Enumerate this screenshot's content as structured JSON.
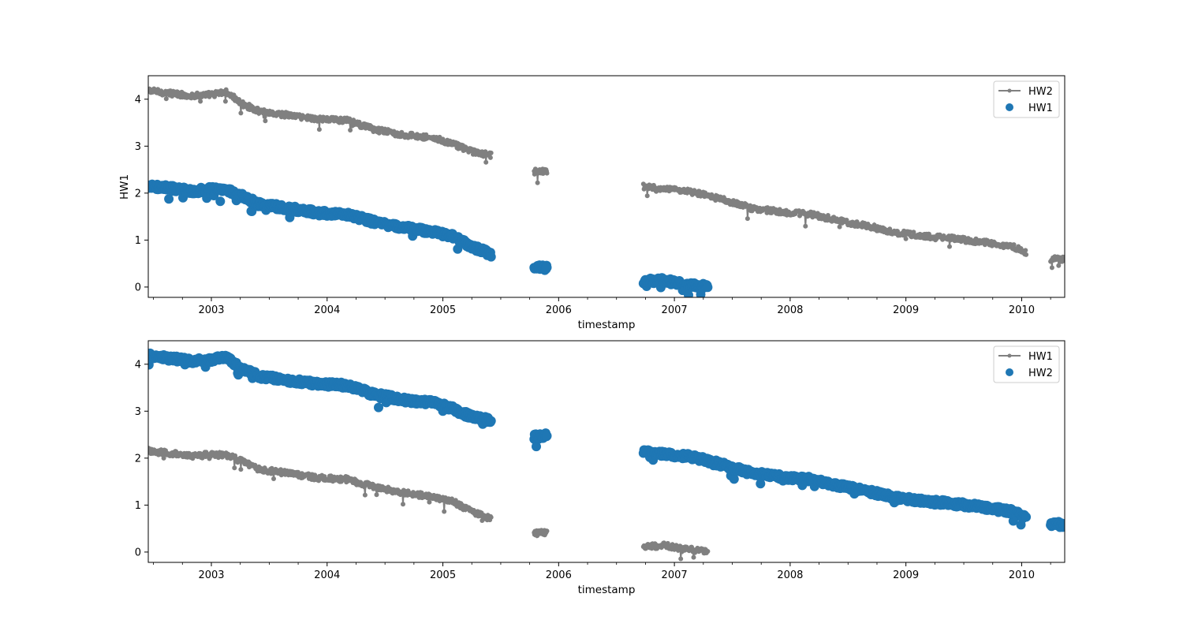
{
  "colors": {
    "line_series": "#808080",
    "scatter_series": "#1f77b4"
  },
  "chart_data": [
    {
      "type": "scatter",
      "xlabel": "timestamp",
      "ylabel": "HW1",
      "xlim": [
        "2002-06-15",
        "2010-05-15"
      ],
      "ylim": [
        -0.22,
        4.5
      ],
      "x_ticks": [
        "2003",
        "2004",
        "2005",
        "2006",
        "2007",
        "2008",
        "2009",
        "2010"
      ],
      "y_ticks": [
        "0",
        "1",
        "2",
        "3",
        "4"
      ],
      "grid": false,
      "legend_position": "top-right",
      "series": [
        {
          "name": "HW2",
          "style": "line-dot",
          "color": "#808080",
          "segments": [
            {
              "points": [
                [
                  "2002-06-15",
                  4.18
                ],
                [
                  "2002-09-01",
                  4.12
                ],
                [
                  "2002-11-01",
                  4.07
                ],
                [
                  "2003-01-01",
                  4.1
                ],
                [
                  "2003-02-20",
                  4.15
                ],
                [
                  "2003-04-01",
                  3.92
                ],
                [
                  "2003-06-01",
                  3.74
                ],
                [
                  "2003-09-01",
                  3.66
                ],
                [
                  "2003-12-01",
                  3.58
                ],
                [
                  "2004-03-01",
                  3.55
                ],
                [
                  "2004-06-01",
                  3.35
                ],
                [
                  "2004-09-01",
                  3.24
                ],
                [
                  "2004-12-01",
                  3.18
                ],
                [
                  "2005-02-01",
                  3.05
                ],
                [
                  "2005-04-01",
                  2.88
                ],
                [
                  "2005-06-01",
                  2.8
                ]
              ]
            },
            {
              "points": [
                [
                  "2005-10-15",
                  2.45
                ],
                [
                  "2005-11-25",
                  2.48
                ]
              ]
            },
            {
              "points": [
                [
                  "2006-09-25",
                  2.14
                ],
                [
                  "2006-12-01",
                  2.08
                ],
                [
                  "2007-03-01",
                  2.02
                ],
                [
                  "2007-06-01",
                  1.86
                ],
                [
                  "2007-09-01",
                  1.68
                ],
                [
                  "2007-12-01",
                  1.6
                ],
                [
                  "2008-03-01",
                  1.55
                ],
                [
                  "2008-06-01",
                  1.42
                ],
                [
                  "2008-09-01",
                  1.3
                ],
                [
                  "2008-12-01",
                  1.16
                ],
                [
                  "2009-03-01",
                  1.08
                ],
                [
                  "2009-06-01",
                  1.03
                ],
                [
                  "2009-09-01",
                  0.96
                ],
                [
                  "2009-12-01",
                  0.86
                ],
                [
                  "2010-01-15",
                  0.74
                ]
              ]
            },
            {
              "points": [
                [
                  "2010-04-01",
                  0.6
                ],
                [
                  "2010-05-15",
                  0.58
                ]
              ]
            }
          ]
        },
        {
          "name": "HW1",
          "style": "scatter",
          "color": "#1f77b4",
          "segments": [
            {
              "points": [
                [
                  "2002-06-15",
                  2.15
                ],
                [
                  "2002-09-01",
                  2.1
                ],
                [
                  "2002-11-01",
                  2.04
                ],
                [
                  "2003-01-01",
                  2.08
                ],
                [
                  "2003-02-20",
                  2.06
                ],
                [
                  "2003-04-01",
                  1.95
                ],
                [
                  "2003-06-01",
                  1.76
                ],
                [
                  "2003-09-01",
                  1.68
                ],
                [
                  "2003-12-01",
                  1.58
                ],
                [
                  "2004-03-01",
                  1.55
                ],
                [
                  "2004-06-01",
                  1.38
                ],
                [
                  "2004-09-01",
                  1.26
                ],
                [
                  "2004-12-01",
                  1.18
                ],
                [
                  "2005-02-01",
                  1.08
                ],
                [
                  "2005-04-01",
                  0.86
                ],
                [
                  "2005-06-01",
                  0.7
                ]
              ]
            },
            {
              "points": [
                [
                  "2005-10-15",
                  0.4
                ],
                [
                  "2005-11-25",
                  0.42
                ]
              ]
            },
            {
              "points": [
                [
                  "2006-09-25",
                  0.12
                ],
                [
                  "2006-12-01",
                  0.14
                ],
                [
                  "2007-02-01",
                  0.06
                ],
                [
                  "2007-04-15",
                  0.02
                ]
              ]
            }
          ]
        }
      ]
    },
    {
      "type": "scatter",
      "xlabel": "timestamp",
      "ylabel": "",
      "xlim": [
        "2002-06-15",
        "2010-05-15"
      ],
      "ylim": [
        -0.22,
        4.5
      ],
      "x_ticks": [
        "2003",
        "2004",
        "2005",
        "2006",
        "2007",
        "2008",
        "2009",
        "2010"
      ],
      "y_ticks": [
        "0",
        "1",
        "2",
        "3",
        "4"
      ],
      "grid": false,
      "legend_position": "top-right",
      "series": [
        {
          "name": "HW1",
          "style": "line-dot",
          "color": "#808080",
          "segments": [
            {
              "points": [
                [
                  "2002-06-15",
                  2.15
                ],
                [
                  "2002-09-01",
                  2.1
                ],
                [
                  "2002-11-01",
                  2.04
                ],
                [
                  "2003-01-01",
                  2.08
                ],
                [
                  "2003-02-20",
                  2.06
                ],
                [
                  "2003-04-01",
                  1.95
                ],
                [
                  "2003-06-01",
                  1.76
                ],
                [
                  "2003-09-01",
                  1.68
                ],
                [
                  "2003-12-01",
                  1.58
                ],
                [
                  "2004-03-01",
                  1.55
                ],
                [
                  "2004-06-01",
                  1.38
                ],
                [
                  "2004-09-01",
                  1.26
                ],
                [
                  "2004-12-01",
                  1.18
                ],
                [
                  "2005-02-01",
                  1.08
                ],
                [
                  "2005-04-01",
                  0.86
                ],
                [
                  "2005-06-01",
                  0.7
                ]
              ]
            },
            {
              "points": [
                [
                  "2005-10-15",
                  0.4
                ],
                [
                  "2005-11-25",
                  0.42
                ]
              ]
            },
            {
              "points": [
                [
                  "2006-09-25",
                  0.12
                ],
                [
                  "2006-12-01",
                  0.14
                ],
                [
                  "2007-02-01",
                  0.06
                ],
                [
                  "2007-04-15",
                  0.02
                ]
              ]
            }
          ]
        },
        {
          "name": "HW2",
          "style": "scatter",
          "color": "#1f77b4",
          "segments": [
            {
              "points": [
                [
                  "2002-06-15",
                  4.18
                ],
                [
                  "2002-09-01",
                  4.12
                ],
                [
                  "2002-11-01",
                  4.07
                ],
                [
                  "2003-01-01",
                  4.1
                ],
                [
                  "2003-02-20",
                  4.15
                ],
                [
                  "2003-04-01",
                  3.92
                ],
                [
                  "2003-06-01",
                  3.74
                ],
                [
                  "2003-09-01",
                  3.66
                ],
                [
                  "2003-12-01",
                  3.58
                ],
                [
                  "2004-03-01",
                  3.55
                ],
                [
                  "2004-06-01",
                  3.35
                ],
                [
                  "2004-09-01",
                  3.24
                ],
                [
                  "2004-12-01",
                  3.18
                ],
                [
                  "2005-02-01",
                  3.05
                ],
                [
                  "2005-04-01",
                  2.88
                ],
                [
                  "2005-06-01",
                  2.8
                ]
              ]
            },
            {
              "points": [
                [
                  "2005-10-15",
                  2.45
                ],
                [
                  "2005-11-25",
                  2.48
                ]
              ]
            },
            {
              "points": [
                [
                  "2006-09-25",
                  2.14
                ],
                [
                  "2006-12-01",
                  2.08
                ],
                [
                  "2007-03-01",
                  2.02
                ],
                [
                  "2007-06-01",
                  1.86
                ],
                [
                  "2007-09-01",
                  1.68
                ],
                [
                  "2007-12-01",
                  1.6
                ],
                [
                  "2008-03-01",
                  1.55
                ],
                [
                  "2008-06-01",
                  1.42
                ],
                [
                  "2008-09-01",
                  1.3
                ],
                [
                  "2008-12-01",
                  1.16
                ],
                [
                  "2009-03-01",
                  1.08
                ],
                [
                  "2009-06-01",
                  1.03
                ],
                [
                  "2009-09-01",
                  0.96
                ],
                [
                  "2009-12-01",
                  0.86
                ],
                [
                  "2010-01-15",
                  0.74
                ]
              ]
            },
            {
              "points": [
                [
                  "2010-04-01",
                  0.6
                ],
                [
                  "2010-05-15",
                  0.58
                ]
              ]
            }
          ]
        }
      ]
    }
  ]
}
